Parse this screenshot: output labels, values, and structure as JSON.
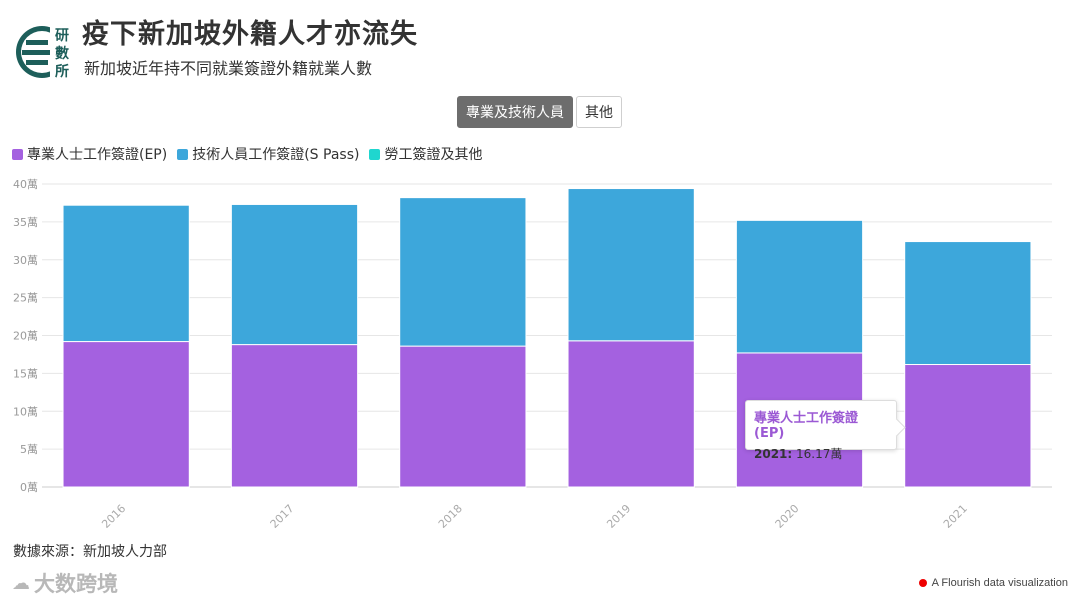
{
  "header": {
    "logo_text": "研數所",
    "title": "疫下新加坡外籍人才亦流失",
    "subtitle": "新加坡近年持不同就業簽證外籍就業人數"
  },
  "tabs": [
    {
      "label": "專業及技術人員",
      "active": true
    },
    {
      "label": "其他",
      "active": false
    }
  ],
  "colors": {
    "ep": "#a461e0",
    "spass": "#3da7db",
    "wp": "#1fd6cf"
  },
  "chart_data": {
    "type": "bar",
    "stacked": true,
    "categories": [
      "2016",
      "2017",
      "2018",
      "2019",
      "2020",
      "2021"
    ],
    "series": [
      {
        "name": "專業人士工作簽證(EP)",
        "color": "#a461e0",
        "values": [
          19.2,
          18.8,
          18.6,
          19.3,
          17.7,
          16.17
        ]
      },
      {
        "name": "技術人員工作簽證(S Pass)",
        "color": "#3da7db",
        "values": [
          18.0,
          18.5,
          19.6,
          20.1,
          17.5,
          16.23
        ]
      },
      {
        "name": "勞工簽證及其他",
        "color": "#1fd6cf",
        "values": [
          0,
          0,
          0,
          0,
          0,
          0
        ]
      }
    ],
    "ylim": [
      0,
      40
    ],
    "yticks": [
      "0萬",
      "5萬",
      "10萬",
      "15萬",
      "20萬",
      "25萬",
      "30萬",
      "35萬",
      "40萬"
    ],
    "grid": true,
    "legend_position": "top-left"
  },
  "tooltip": {
    "series": "專業人士工作簽證(EP)",
    "year": "2021:",
    "value": "16.17萬"
  },
  "source": "數據來源：新加坡人力部",
  "watermark": "大数跨境",
  "credit": "A Flourish data visualization"
}
